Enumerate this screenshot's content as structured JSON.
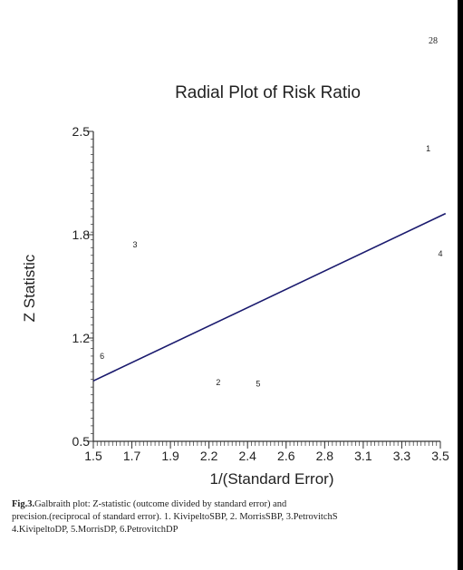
{
  "page_number": "28",
  "caption": {
    "label": "Fig.3.",
    "line1": "Galbraith plot: Z-statistic (outcome divided by standard error) and",
    "line2": "precision.(reciprocal of standard error). 1. KivipeltoSBP, 2. MorrisSBP, 3.PetrovitchS",
    "line3": "4.KivipeltoDP, 5.MorrisDP, 6.PetrovitchDP"
  },
  "chart_data": {
    "type": "scatter",
    "title": "Radial Plot of Risk Ratio",
    "xlabel": "1/(Standard Error)",
    "ylabel": "Z Statistic",
    "xlim": [
      1.5,
      3.5
    ],
    "ylim": [
      0.5,
      2.5
    ],
    "x_ticks": [
      "1.5",
      "1.7",
      "1.9",
      "2.2",
      "2.4",
      "2.6",
      "2.8",
      "3.1",
      "3.3",
      "3.5"
    ],
    "y_ticks": [
      "0.5",
      "1.2",
      "1.8",
      "2.5"
    ],
    "points": [
      {
        "label": "1",
        "x": 3.43,
        "y": 2.39
      },
      {
        "label": "2",
        "x": 2.22,
        "y": 0.88
      },
      {
        "label": "3",
        "x": 1.74,
        "y": 1.77
      },
      {
        "label": "4",
        "x": 3.5,
        "y": 1.71
      },
      {
        "label": "5",
        "x": 2.45,
        "y": 0.87
      },
      {
        "label": "6",
        "x": 1.55,
        "y": 1.05
      }
    ],
    "fit_line": {
      "x": [
        1.5,
        3.53
      ],
      "y": [
        0.89,
        1.97
      ]
    },
    "grid": false,
    "colors": {
      "line": "#1a1a6e",
      "axis": "#333333",
      "text": "#222222"
    }
  }
}
